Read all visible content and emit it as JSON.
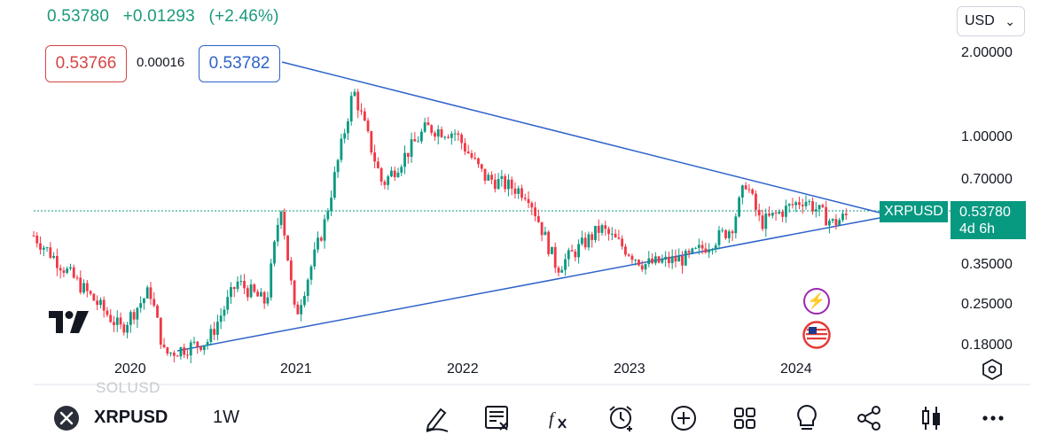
{
  "quote": {
    "last": "0.53780",
    "change": "+0.01293",
    "change_pct": "(+2.46%)"
  },
  "currency": {
    "selected": "USD"
  },
  "bid": "0.53766",
  "spread": "0.00016",
  "ask": "0.53782",
  "price_axis": [
    "2.00000",
    "1.00000",
    "0.70000",
    "0.35000",
    "0.25000",
    "0.18000"
  ],
  "time_axis": [
    "2020",
    "2021",
    "2022",
    "2023",
    "2024"
  ],
  "current": {
    "symbol": "XRPUSD",
    "price": "0.53780",
    "countdown": "4d 6h"
  },
  "ghost_symbol": "SOLUSD",
  "bottom": {
    "symbol": "XRPUSD",
    "interval": "1W"
  },
  "icons": [
    "draw-icon",
    "notes-icon",
    "indicators-icon",
    "alert-icon",
    "add-icon",
    "layout-icon",
    "ideas-icon",
    "share-icon",
    "chart-type-icon",
    "more-icon"
  ],
  "colors": {
    "up": "#089981",
    "down": "#f23645",
    "trendline": "#2e63c9",
    "accent": "#089981"
  },
  "chart_data": {
    "type": "candlestick",
    "symbol": "XRPUSD",
    "interval": "1W",
    "scale": "log",
    "ylim": [
      0.16,
      2.2
    ],
    "x_range": [
      "2019-06",
      "2024-12"
    ],
    "series": [
      {
        "x": "2019-06",
        "close": 0.45
      },
      {
        "x": "2019-09",
        "close": 0.3
      },
      {
        "x": "2019-12",
        "close": 0.2
      },
      {
        "x": "2020-02",
        "close": 0.28
      },
      {
        "x": "2020-03",
        "close": 0.16
      },
      {
        "x": "2020-06",
        "close": 0.18
      },
      {
        "x": "2020-08",
        "close": 0.3
      },
      {
        "x": "2020-10",
        "close": 0.25
      },
      {
        "x": "2020-11",
        "close": 0.6
      },
      {
        "x": "2020-12",
        "close": 0.22
      },
      {
        "x": "2021-02",
        "close": 0.5
      },
      {
        "x": "2021-04",
        "close": 1.6
      },
      {
        "x": "2021-06",
        "close": 0.7
      },
      {
        "x": "2021-09",
        "close": 1.15
      },
      {
        "x": "2021-11",
        "close": 1.1
      },
      {
        "x": "2022-01",
        "close": 0.75
      },
      {
        "x": "2022-04",
        "close": 0.65
      },
      {
        "x": "2022-06",
        "close": 0.34
      },
      {
        "x": "2022-09",
        "close": 0.48
      },
      {
        "x": "2022-12",
        "close": 0.35
      },
      {
        "x": "2023-03",
        "close": 0.37
      },
      {
        "x": "2023-06",
        "close": 0.48
      },
      {
        "x": "2023-07",
        "close": 0.72
      },
      {
        "x": "2023-08",
        "close": 0.5
      },
      {
        "x": "2023-11",
        "close": 0.62
      },
      {
        "x": "2024-01",
        "close": 0.5
      },
      {
        "x": "2024-02",
        "close": 0.5378
      }
    ],
    "trendlines": [
      {
        "name": "upper",
        "from": {
          "x": "2021-05",
          "y": 1.65
        },
        "to": {
          "x": "2024-07",
          "y": 0.54
        }
      },
      {
        "name": "lower",
        "from": {
          "x": "2020-03",
          "y": 0.165
        },
        "to": {
          "x": "2024-07",
          "y": 0.53
        }
      }
    ],
    "last_price_line": 0.5378
  }
}
